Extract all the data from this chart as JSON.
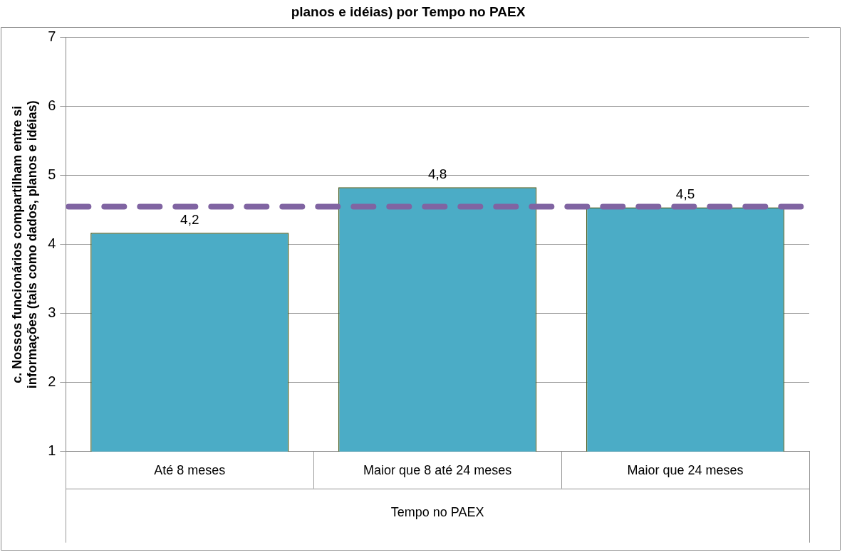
{
  "chart_data": {
    "type": "bar",
    "title": "planos e idéias) por Tempo no PAEX",
    "xlabel": "Tempo no PAEX",
    "ylabel": "c. Nossos funcionários compartilham entre si informações (tais como dados, planos e idéias)",
    "categories": [
      "Até 8 meses",
      "Maior que 8 até 24 meses",
      "Maior que 24 meses"
    ],
    "values": [
      4.17,
      4.83,
      4.54
    ],
    "value_labels": [
      "4,2",
      "4,8",
      "4,5"
    ],
    "color": "#4bacc6",
    "ylim": [
      1,
      7
    ],
    "yticks": [
      1,
      2,
      3,
      4,
      5,
      6,
      7
    ],
    "grid": "y",
    "ref_lines": [
      {
        "axis": "y",
        "value": 4.55,
        "color": "#8064a2",
        "line_style": "dashed"
      }
    ]
  }
}
